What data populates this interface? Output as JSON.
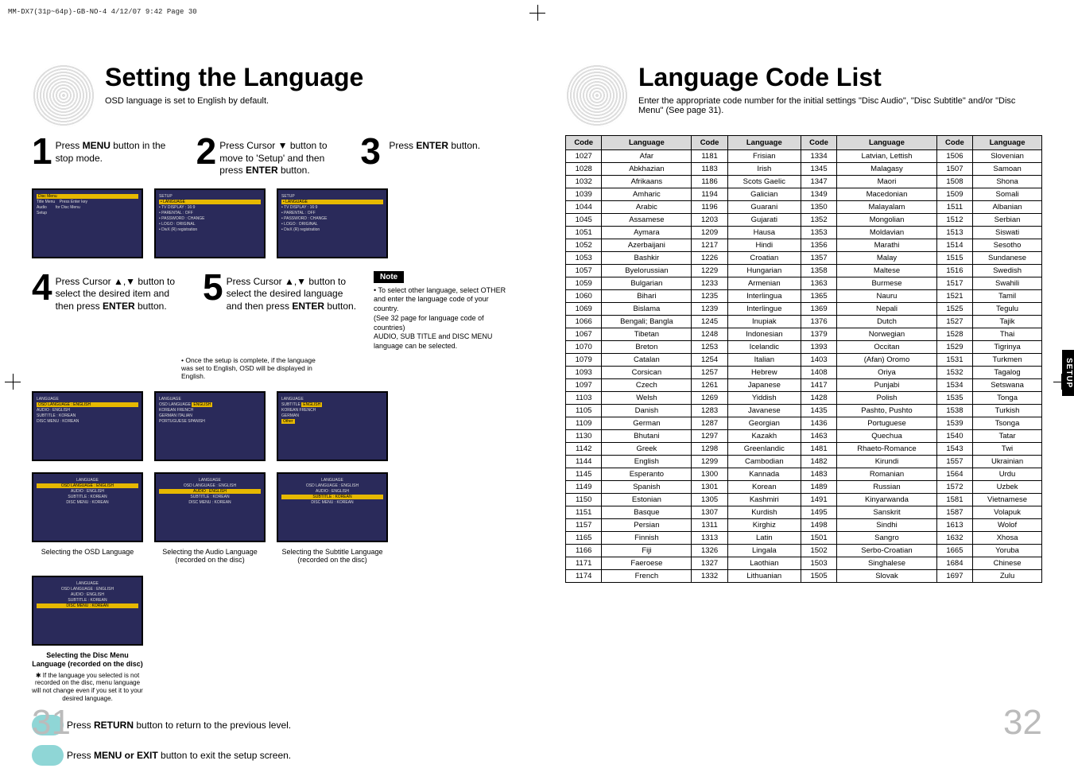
{
  "header_info": "MM-DX7(31p~64p)-GB-NO-4  4/12/07  9:42  Page 30",
  "side_tab": "SETUP",
  "left": {
    "title": "Setting the Language",
    "subtitle": "OSD language is set to English by default.",
    "steps": [
      {
        "n": "1",
        "html": "Press <b>MENU</b> button in the stop mode."
      },
      {
        "n": "2",
        "html": "Press Cursor ▼ button to move to 'Setup' and then press <b>ENTER</b> button."
      },
      {
        "n": "3",
        "html": "Press <b>ENTER</b> button."
      },
      {
        "n": "4",
        "html": "Press Cursor ▲,▼ button to select the desired item and then press <b>ENTER</b> button."
      },
      {
        "n": "5",
        "html": "Press Cursor ▲,▼ button to select the desired language and then press <b>ENTER</b> button."
      }
    ],
    "step5_footnote": "• Once the setup is complete, if the language was set to English, OSD will be displayed in English.",
    "note_label": "Note",
    "note_body": "• To select other language, select OTHER and enter the language code of your country.\n(See 32 page for language code of countries)\nAUDIO, SUB TITLE and DISC MENU language can be selected.",
    "captions": [
      "Selecting the OSD Language",
      "Selecting the Audio Language (recorded on the disc)",
      "Selecting the Subtitle Language (recorded on the disc)",
      "Selecting the Disc Menu Language (recorded on the disc)"
    ],
    "disc_menu_note": "✱ If the language you selected is not recorded on the disc, menu language will not change even if you set it to your desired language.",
    "return_btn": "Press <b>RETURN</b> button to return to the previous level.",
    "menu_exit_btn": "Press <b>MENU or EXIT</b> button to exit the setup screen.",
    "page_num": "31",
    "osd_screens": {
      "menu_items": [
        "Disc Menu",
        "Title Menu",
        "Audio",
        "Setup"
      ],
      "setup_items": [
        "LANGUAGE",
        "TV DISPLAY : 16:9",
        "PARENTAL : OFF",
        "PASSWORD : CHANGE",
        "LOGO : ORIGINAL",
        "DivX (R) registration"
      ],
      "lang_items": [
        "OSD LANGUAGE : ENGLISH",
        "AUDIO : ENGLISH",
        "SUBTITLE : KOREAN",
        "DISC MENU : KOREAN"
      ],
      "lang_options": [
        "ENGLISH",
        "KOREAN",
        "FRENCH",
        "GERMAN",
        "ITALIAN",
        "PORTUGUESE",
        "SPANISH",
        "Other"
      ]
    }
  },
  "right": {
    "title": "Language Code List",
    "subtitle": "Enter the appropriate code number for the initial settings \"Disc Audio\", \"Disc Subtitle\" and/or \"Disc Menu\" (See page 31).",
    "headers": [
      "Code",
      "Language",
      "Code",
      "Language",
      "Code",
      "Language",
      "Code",
      "Language"
    ],
    "rows": [
      [
        "1027",
        "Afar",
        "1181",
        "Frisian",
        "1334",
        "Latvian, Lettish",
        "1506",
        "Slovenian"
      ],
      [
        "1028",
        "Abkhazian",
        "1183",
        "Irish",
        "1345",
        "Malagasy",
        "1507",
        "Samoan"
      ],
      [
        "1032",
        "Afrikaans",
        "1186",
        "Scots Gaelic",
        "1347",
        "Maori",
        "1508",
        "Shona"
      ],
      [
        "1039",
        "Amharic",
        "1194",
        "Galician",
        "1349",
        "Macedonian",
        "1509",
        "Somali"
      ],
      [
        "1044",
        "Arabic",
        "1196",
        "Guarani",
        "1350",
        "Malayalam",
        "1511",
        "Albanian"
      ],
      [
        "1045",
        "Assamese",
        "1203",
        "Gujarati",
        "1352",
        "Mongolian",
        "1512",
        "Serbian"
      ],
      [
        "1051",
        "Aymara",
        "1209",
        "Hausa",
        "1353",
        "Moldavian",
        "1513",
        "Siswati"
      ],
      [
        "1052",
        "Azerbaijani",
        "1217",
        "Hindi",
        "1356",
        "Marathi",
        "1514",
        "Sesotho"
      ],
      [
        "1053",
        "Bashkir",
        "1226",
        "Croatian",
        "1357",
        "Malay",
        "1515",
        "Sundanese"
      ],
      [
        "1057",
        "Byelorussian",
        "1229",
        "Hungarian",
        "1358",
        "Maltese",
        "1516",
        "Swedish"
      ],
      [
        "1059",
        "Bulgarian",
        "1233",
        "Armenian",
        "1363",
        "Burmese",
        "1517",
        "Swahili"
      ],
      [
        "1060",
        "Bihari",
        "1235",
        "Interlingua",
        "1365",
        "Nauru",
        "1521",
        "Tamil"
      ],
      [
        "1069",
        "Bislama",
        "1239",
        "Interlingue",
        "1369",
        "Nepali",
        "1525",
        "Tegulu"
      ],
      [
        "1066",
        "Bengali; Bangla",
        "1245",
        "Inupiak",
        "1376",
        "Dutch",
        "1527",
        "Tajik"
      ],
      [
        "1067",
        "Tibetan",
        "1248",
        "Indonesian",
        "1379",
        "Norwegian",
        "1528",
        "Thai"
      ],
      [
        "1070",
        "Breton",
        "1253",
        "Icelandic",
        "1393",
        "Occitan",
        "1529",
        "Tigrinya"
      ],
      [
        "1079",
        "Catalan",
        "1254",
        "Italian",
        "1403",
        "(Afan) Oromo",
        "1531",
        "Turkmen"
      ],
      [
        "1093",
        "Corsican",
        "1257",
        "Hebrew",
        "1408",
        "Oriya",
        "1532",
        "Tagalog"
      ],
      [
        "1097",
        "Czech",
        "1261",
        "Japanese",
        "1417",
        "Punjabi",
        "1534",
        "Setswana"
      ],
      [
        "1103",
        "Welsh",
        "1269",
        "Yiddish",
        "1428",
        "Polish",
        "1535",
        "Tonga"
      ],
      [
        "1105",
        "Danish",
        "1283",
        "Javanese",
        "1435",
        "Pashto, Pushto",
        "1538",
        "Turkish"
      ],
      [
        "1109",
        "German",
        "1287",
        "Georgian",
        "1436",
        "Portuguese",
        "1539",
        "Tsonga"
      ],
      [
        "1130",
        "Bhutani",
        "1297",
        "Kazakh",
        "1463",
        "Quechua",
        "1540",
        "Tatar"
      ],
      [
        "1142",
        "Greek",
        "1298",
        "Greenlandic",
        "1481",
        "Rhaeto-Romance",
        "1543",
        "Twi"
      ],
      [
        "1144",
        "English",
        "1299",
        "Cambodian",
        "1482",
        "Kirundi",
        "1557",
        "Ukrainian"
      ],
      [
        "1145",
        "Esperanto",
        "1300",
        "Kannada",
        "1483",
        "Romanian",
        "1564",
        "Urdu"
      ],
      [
        "1149",
        "Spanish",
        "1301",
        "Korean",
        "1489",
        "Russian",
        "1572",
        "Uzbek"
      ],
      [
        "1150",
        "Estonian",
        "1305",
        "Kashmiri",
        "1491",
        "Kinyarwanda",
        "1581",
        "Vietnamese"
      ],
      [
        "1151",
        "Basque",
        "1307",
        "Kurdish",
        "1495",
        "Sanskrit",
        "1587",
        "Volapuk"
      ],
      [
        "1157",
        "Persian",
        "1311",
        "Kirghiz",
        "1498",
        "Sindhi",
        "1613",
        "Wolof"
      ],
      [
        "1165",
        "Finnish",
        "1313",
        "Latin",
        "1501",
        "Sangro",
        "1632",
        "Xhosa"
      ],
      [
        "1166",
        "Fiji",
        "1326",
        "Lingala",
        "1502",
        "Serbo-Croatian",
        "1665",
        "Yoruba"
      ],
      [
        "1171",
        "Faeroese",
        "1327",
        "Laothian",
        "1503",
        "Singhalese",
        "1684",
        "Chinese"
      ],
      [
        "1174",
        "French",
        "1332",
        "Lithuanian",
        "1505",
        "Slovak",
        "1697",
        "Zulu"
      ]
    ],
    "page_num": "32"
  }
}
